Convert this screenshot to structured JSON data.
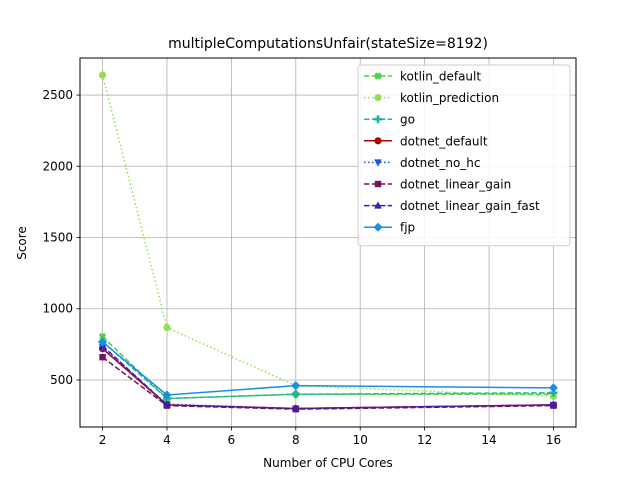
{
  "chart_data": {
    "type": "line",
    "title": "multipleComputationsUnfair(stateSize=8192)",
    "xlabel": "Number of CPU Cores",
    "ylabel": "Score",
    "x": [
      2,
      4,
      8,
      16
    ],
    "xlim": [
      1.3,
      16.7
    ],
    "ylim": [
      170,
      2760
    ],
    "xticks": [
      2,
      4,
      6,
      8,
      10,
      12,
      14,
      16
    ],
    "yticks": [
      500,
      1000,
      1500,
      2000,
      2500
    ],
    "grid": true,
    "legend_position": "upper right",
    "series": [
      {
        "name": "kotlin_default",
        "color": "#4fcf4f",
        "dash": "dashed",
        "marker": "x-filled",
        "values": [
          805,
          370,
          400,
          400
        ]
      },
      {
        "name": "kotlin_prediction",
        "color": "#90e04f",
        "dash": "dotted",
        "marker": "circle",
        "values": [
          2640,
          868,
          460,
          385
        ]
      },
      {
        "name": "go",
        "color": "#1fb3a3",
        "dash": "dashed",
        "marker": "plus",
        "values": [
          770,
          370,
          400,
          410
        ]
      },
      {
        "name": "dotnet_default",
        "color": "#b00000",
        "dash": "solid",
        "marker": "circle",
        "values": [
          720,
          325,
          300,
          325
        ]
      },
      {
        "name": "dotnet_no_hc",
        "color": "#1a4fe0",
        "dash": "dotted",
        "marker": "triangle-down",
        "values": [
          730,
          330,
          300,
          325
        ]
      },
      {
        "name": "dotnet_linear_gain",
        "color": "#7a0f5a",
        "dash": "dashed",
        "marker": "square",
        "values": [
          660,
          320,
          295,
          320
        ]
      },
      {
        "name": "dotnet_linear_gain_fast",
        "color": "#3a1fb0",
        "dash": "dashed",
        "marker": "triangle-up",
        "values": [
          740,
          325,
          300,
          325
        ]
      },
      {
        "name": "fjp",
        "color": "#1a8fe0",
        "dash": "solid",
        "marker": "diamond",
        "values": [
          765,
          395,
          460,
          445
        ]
      }
    ]
  }
}
